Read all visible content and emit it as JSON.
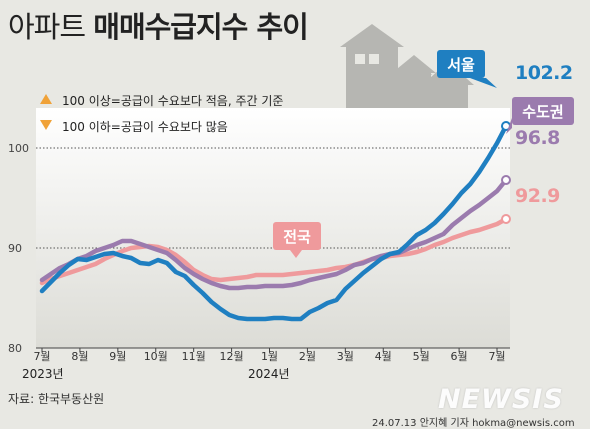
{
  "title": {
    "light": "아파트",
    "bold": "매매수급지수 추이"
  },
  "legend": [
    {
      "icon": "up-triangle-icon",
      "text": "100 이상=공급이 수요보다 적음, 주간 기준"
    },
    {
      "icon": "down-triangle-icon",
      "text": "100 이하=공급이 수요보다 많음"
    }
  ],
  "source": "자료: 한국부동산원",
  "credit": "24.07.13 안지혜 기자 hokma@newsis.com",
  "watermark": "NEWSIS",
  "colors": {
    "seoul": "#1f7fc1",
    "capital": "#9b7bae",
    "national": "#ef9a9c",
    "accent": "#f0a238"
  },
  "chart_data": {
    "type": "line",
    "title": "아파트 매매수급지수 추이",
    "xlabel": "",
    "ylabel": "",
    "ylim": [
      80,
      104
    ],
    "y_ticks": [
      80,
      90,
      100
    ],
    "x_ticks": [
      "7월",
      "8월",
      "9월",
      "10월",
      "11월",
      "12월",
      "1월",
      "2월",
      "3월",
      "4월",
      "5월",
      "6월",
      "7월"
    ],
    "year_labels": [
      "2023년",
      "2024년"
    ],
    "grid": "dotted lines at 90 and 100",
    "series": [
      {
        "name": "서울",
        "color": "#1f7fc1",
        "end_label": "102.2",
        "values": [
          85.7,
          86.6,
          87.5,
          88.3,
          88.9,
          88.8,
          89.1,
          89.4,
          89.5,
          89.2,
          89.0,
          88.5,
          88.4,
          88.8,
          88.5,
          87.6,
          87.2,
          86.3,
          85.5,
          84.6,
          83.9,
          83.3,
          83.0,
          82.9,
          82.9,
          82.9,
          83.0,
          83.0,
          82.9,
          82.9,
          83.6,
          84.0,
          84.5,
          84.8,
          85.9,
          86.7,
          87.5,
          88.2,
          88.9,
          89.4,
          89.6,
          90.4,
          91.3,
          91.8,
          92.5,
          93.4,
          94.4,
          95.5,
          96.4,
          97.6,
          99.0,
          100.5,
          102.2
        ]
      },
      {
        "name": "수도권",
        "color": "#9b7bae",
        "end_label": "96.8",
        "values": [
          86.8,
          87.4,
          88.0,
          88.4,
          88.9,
          89.2,
          89.7,
          90.0,
          90.3,
          90.7,
          90.7,
          90.4,
          90.1,
          89.8,
          89.5,
          88.8,
          88.0,
          87.4,
          86.9,
          86.5,
          86.2,
          86.0,
          86.0,
          86.1,
          86.1,
          86.2,
          86.2,
          86.2,
          86.3,
          86.5,
          86.8,
          87.0,
          87.2,
          87.4,
          87.8,
          88.3,
          88.5,
          88.9,
          89.2,
          89.4,
          89.5,
          89.9,
          90.3,
          90.6,
          91.0,
          91.4,
          92.3,
          93.0,
          93.7,
          94.3,
          95.0,
          95.7,
          96.8
        ]
      },
      {
        "name": "전국",
        "color": "#ef9a9c",
        "end_label": "92.9",
        "values": [
          86.5,
          86.9,
          87.2,
          87.5,
          87.8,
          88.1,
          88.4,
          88.9,
          89.3,
          89.7,
          90.0,
          90.1,
          90.2,
          90.1,
          89.8,
          89.3,
          88.6,
          87.8,
          87.3,
          86.9,
          86.8,
          86.9,
          87.0,
          87.1,
          87.3,
          87.3,
          87.3,
          87.3,
          87.4,
          87.5,
          87.6,
          87.7,
          87.8,
          88.0,
          88.1,
          88.3,
          88.6,
          88.9,
          89.0,
          89.2,
          89.3,
          89.4,
          89.6,
          89.9,
          90.3,
          90.6,
          91.0,
          91.3,
          91.6,
          91.8,
          92.1,
          92.4,
          92.9
        ]
      }
    ],
    "callouts": [
      {
        "series": 0,
        "text": "서울"
      },
      {
        "series": 1,
        "text": "수도권"
      },
      {
        "series": 2,
        "text": "전국"
      }
    ]
  }
}
